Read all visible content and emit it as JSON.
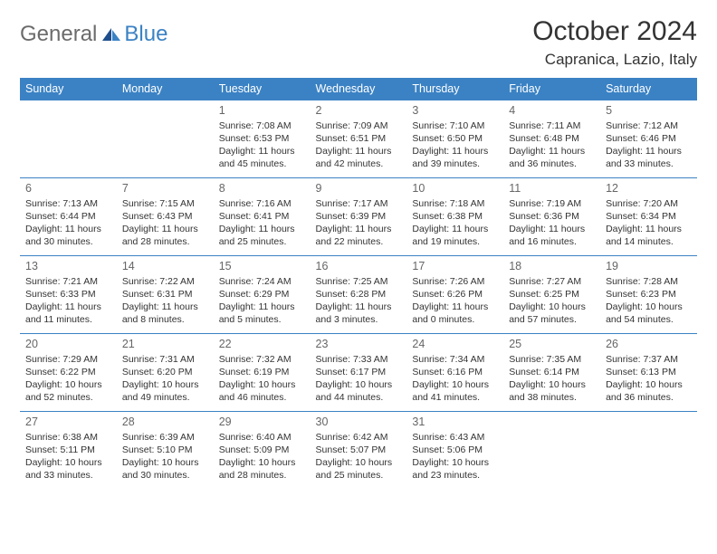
{
  "logo": {
    "text1": "General",
    "text2": "Blue"
  },
  "title": "October 2024",
  "location": "Capranica, Lazio, Italy",
  "colors": {
    "header_bg": "#3b82c4",
    "header_text": "#ffffff",
    "border": "#3b82c4",
    "daynum": "#666666",
    "body_text": "#333333",
    "logo_gray": "#6b6b6b",
    "logo_blue": "#3b82c4"
  },
  "days_of_week": [
    "Sunday",
    "Monday",
    "Tuesday",
    "Wednesday",
    "Thursday",
    "Friday",
    "Saturday"
  ],
  "weeks": [
    [
      null,
      null,
      {
        "n": "1",
        "sunrise": "7:08 AM",
        "sunset": "6:53 PM",
        "daylight": "11 hours and 45 minutes."
      },
      {
        "n": "2",
        "sunrise": "7:09 AM",
        "sunset": "6:51 PM",
        "daylight": "11 hours and 42 minutes."
      },
      {
        "n": "3",
        "sunrise": "7:10 AM",
        "sunset": "6:50 PM",
        "daylight": "11 hours and 39 minutes."
      },
      {
        "n": "4",
        "sunrise": "7:11 AM",
        "sunset": "6:48 PM",
        "daylight": "11 hours and 36 minutes."
      },
      {
        "n": "5",
        "sunrise": "7:12 AM",
        "sunset": "6:46 PM",
        "daylight": "11 hours and 33 minutes."
      }
    ],
    [
      {
        "n": "6",
        "sunrise": "7:13 AM",
        "sunset": "6:44 PM",
        "daylight": "11 hours and 30 minutes."
      },
      {
        "n": "7",
        "sunrise": "7:15 AM",
        "sunset": "6:43 PM",
        "daylight": "11 hours and 28 minutes."
      },
      {
        "n": "8",
        "sunrise": "7:16 AM",
        "sunset": "6:41 PM",
        "daylight": "11 hours and 25 minutes."
      },
      {
        "n": "9",
        "sunrise": "7:17 AM",
        "sunset": "6:39 PM",
        "daylight": "11 hours and 22 minutes."
      },
      {
        "n": "10",
        "sunrise": "7:18 AM",
        "sunset": "6:38 PM",
        "daylight": "11 hours and 19 minutes."
      },
      {
        "n": "11",
        "sunrise": "7:19 AM",
        "sunset": "6:36 PM",
        "daylight": "11 hours and 16 minutes."
      },
      {
        "n": "12",
        "sunrise": "7:20 AM",
        "sunset": "6:34 PM",
        "daylight": "11 hours and 14 minutes."
      }
    ],
    [
      {
        "n": "13",
        "sunrise": "7:21 AM",
        "sunset": "6:33 PM",
        "daylight": "11 hours and 11 minutes."
      },
      {
        "n": "14",
        "sunrise": "7:22 AM",
        "sunset": "6:31 PM",
        "daylight": "11 hours and 8 minutes."
      },
      {
        "n": "15",
        "sunrise": "7:24 AM",
        "sunset": "6:29 PM",
        "daylight": "11 hours and 5 minutes."
      },
      {
        "n": "16",
        "sunrise": "7:25 AM",
        "sunset": "6:28 PM",
        "daylight": "11 hours and 3 minutes."
      },
      {
        "n": "17",
        "sunrise": "7:26 AM",
        "sunset": "6:26 PM",
        "daylight": "11 hours and 0 minutes."
      },
      {
        "n": "18",
        "sunrise": "7:27 AM",
        "sunset": "6:25 PM",
        "daylight": "10 hours and 57 minutes."
      },
      {
        "n": "19",
        "sunrise": "7:28 AM",
        "sunset": "6:23 PM",
        "daylight": "10 hours and 54 minutes."
      }
    ],
    [
      {
        "n": "20",
        "sunrise": "7:29 AM",
        "sunset": "6:22 PM",
        "daylight": "10 hours and 52 minutes."
      },
      {
        "n": "21",
        "sunrise": "7:31 AM",
        "sunset": "6:20 PM",
        "daylight": "10 hours and 49 minutes."
      },
      {
        "n": "22",
        "sunrise": "7:32 AM",
        "sunset": "6:19 PM",
        "daylight": "10 hours and 46 minutes."
      },
      {
        "n": "23",
        "sunrise": "7:33 AM",
        "sunset": "6:17 PM",
        "daylight": "10 hours and 44 minutes."
      },
      {
        "n": "24",
        "sunrise": "7:34 AM",
        "sunset": "6:16 PM",
        "daylight": "10 hours and 41 minutes."
      },
      {
        "n": "25",
        "sunrise": "7:35 AM",
        "sunset": "6:14 PM",
        "daylight": "10 hours and 38 minutes."
      },
      {
        "n": "26",
        "sunrise": "7:37 AM",
        "sunset": "6:13 PM",
        "daylight": "10 hours and 36 minutes."
      }
    ],
    [
      {
        "n": "27",
        "sunrise": "6:38 AM",
        "sunset": "5:11 PM",
        "daylight": "10 hours and 33 minutes."
      },
      {
        "n": "28",
        "sunrise": "6:39 AM",
        "sunset": "5:10 PM",
        "daylight": "10 hours and 30 minutes."
      },
      {
        "n": "29",
        "sunrise": "6:40 AM",
        "sunset": "5:09 PM",
        "daylight": "10 hours and 28 minutes."
      },
      {
        "n": "30",
        "sunrise": "6:42 AM",
        "sunset": "5:07 PM",
        "daylight": "10 hours and 25 minutes."
      },
      {
        "n": "31",
        "sunrise": "6:43 AM",
        "sunset": "5:06 PM",
        "daylight": "10 hours and 23 minutes."
      },
      null,
      null
    ]
  ],
  "labels": {
    "sunrise": "Sunrise:",
    "sunset": "Sunset:",
    "daylight": "Daylight:"
  }
}
